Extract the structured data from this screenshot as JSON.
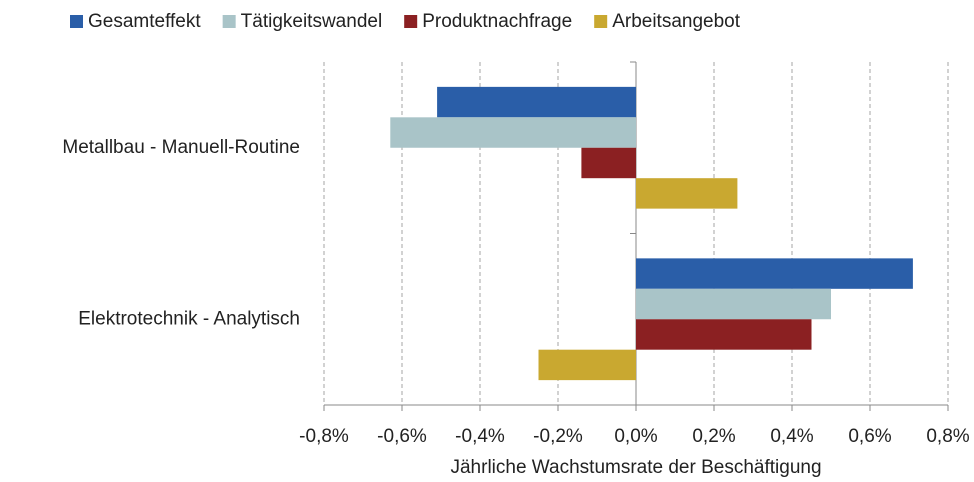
{
  "chart_data": {
    "type": "bar",
    "orientation": "horizontal",
    "categories": [
      "Metallbau - Manuell-Routine",
      "Elektrotechnik - Analytisch"
    ],
    "series": [
      {
        "name": "Gesamteffekt",
        "color": "#2a5ea8",
        "values": [
          -0.51,
          0.71
        ]
      },
      {
        "name": "Tätigkeitswandel",
        "color": "#a9c4c8",
        "values": [
          -0.63,
          0.5
        ]
      },
      {
        "name": "Produktnachfrage",
        "color": "#8b2022",
        "values": [
          -0.14,
          0.45
        ]
      },
      {
        "name": "Arbeitsangebot",
        "color": "#c9a830",
        "values": [
          0.26,
          -0.25
        ]
      }
    ],
    "xlabel": "Jährliche Wachstumsrate der Beschäftigung",
    "xlim": [
      -0.8,
      0.8
    ],
    "xticks": [
      {
        "value": -0.8,
        "label": "-0,8%"
      },
      {
        "value": -0.6,
        "label": "-0,6%"
      },
      {
        "value": -0.4,
        "label": "-0,4%"
      },
      {
        "value": -0.2,
        "label": "-0,2%"
      },
      {
        "value": 0,
        "label": "0,0%"
      },
      {
        "value": 0.2,
        "label": "0,2%"
      },
      {
        "value": 0.4,
        "label": "0,4%"
      },
      {
        "value": 0.6,
        "label": "0,6%"
      },
      {
        "value": 0.8,
        "label": "0,8%"
      }
    ],
    "grid": true,
    "legend": "top"
  }
}
